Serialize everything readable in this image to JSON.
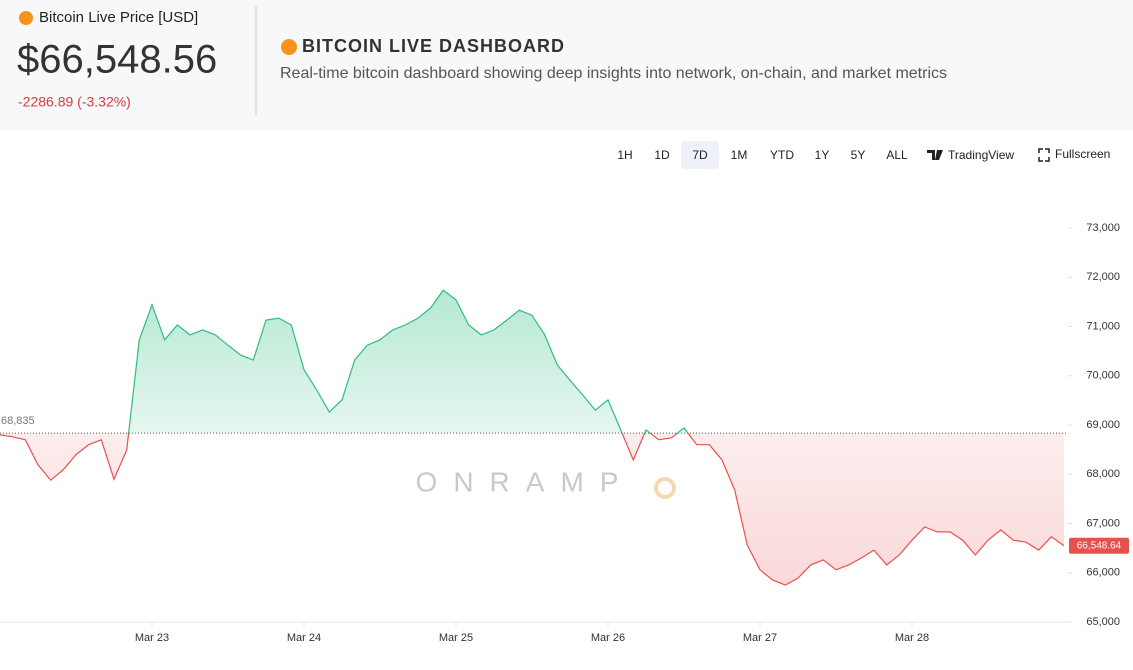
{
  "header": {
    "label": "Bitcoin Live Price [USD]",
    "price": "$66,548.56",
    "change": "-2286.89 (-3.32%)",
    "title": "BITCOIN LIVE DASHBOARD",
    "subtitle": "Real-time bitcoin dashboard showing deep insights into network, on-chain, and market metrics"
  },
  "toolbar": {
    "ranges": [
      "1H",
      "1D",
      "7D",
      "1M",
      "YTD",
      "1Y",
      "5Y",
      "ALL"
    ],
    "selected_range": "7D",
    "brand": "TradingView",
    "fullscreen": "Fullscreen"
  },
  "chart_data": {
    "type": "line",
    "watermark": "ONRAMP",
    "values": [
      68800,
      68760,
      68700,
      68190,
      67880,
      68090,
      68400,
      68600,
      68700,
      67900,
      68490,
      70730,
      71440,
      70730,
      71030,
      70830,
      70930,
      70830,
      70620,
      70420,
      70320,
      71130,
      71170,
      71030,
      70120,
      69710,
      69260,
      69510,
      70320,
      70620,
      70730,
      70930,
      71030,
      71170,
      71380,
      71740,
      71540,
      71030,
      70830,
      70930,
      71130,
      71330,
      71230,
      70830,
      70220,
      69910,
      69610,
      69300,
      69510,
      68900,
      68290,
      68900,
      68700,
      68740,
      68940,
      68600,
      68600,
      68290,
      67680,
      66560,
      66060,
      65850,
      65750,
      65890,
      66160,
      66260,
      66060,
      66160,
      66300,
      66460,
      66160,
      66360,
      66660,
      66930,
      66830,
      66830,
      66660,
      66360,
      66660,
      66870,
      66660,
      66620,
      66460,
      66730,
      66550
    ],
    "xlim": [
      0,
      84
    ],
    "xticks": [
      {
        "value": 12,
        "label": "Mar 23"
      },
      {
        "value": 24,
        "label": "Mar 24"
      },
      {
        "value": 36,
        "label": "Mar 25"
      },
      {
        "value": 48,
        "label": "Mar 26"
      },
      {
        "value": 60,
        "label": "Mar 27"
      },
      {
        "value": 72,
        "label": "Mar 28"
      }
    ],
    "ylim": [
      65000,
      73000
    ],
    "yticks": [
      {
        "value": 65000,
        "label": "65,000"
      },
      {
        "value": 66000,
        "label": "66,000"
      },
      {
        "value": 67000,
        "label": "67,000"
      },
      {
        "value": 68000,
        "label": "68,000"
      },
      {
        "value": 69000,
        "label": "69,000"
      },
      {
        "value": 70000,
        "label": "70,000"
      },
      {
        "value": 71000,
        "label": "71,000"
      },
      {
        "value": 72000,
        "label": "72,000"
      },
      {
        "value": 73000,
        "label": "73,000"
      }
    ],
    "baseline": {
      "value": 68835,
      "label": "68,835"
    },
    "last_price": {
      "value": 66548.64,
      "label": "66,548.64"
    },
    "up_color": "#2dbd7f",
    "down_color": "#e8504f"
  }
}
